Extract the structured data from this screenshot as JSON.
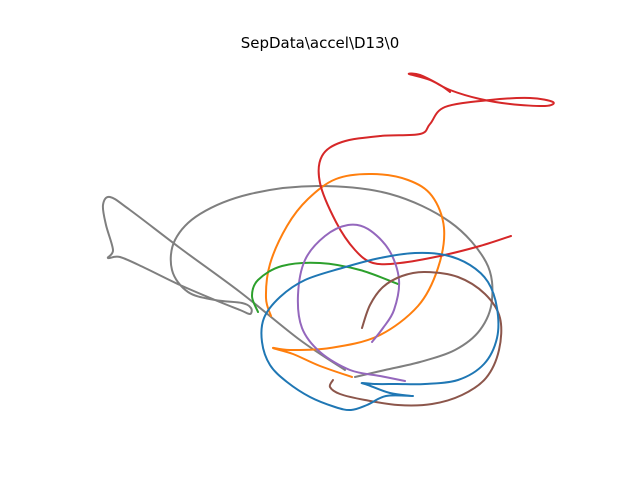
{
  "chart_data": {
    "type": "line",
    "title": "SepData\\accel\\D13\\0",
    "xlabel": "",
    "ylabel": "",
    "axes_visible": false,
    "grid": false,
    "legend": "none",
    "series": [
      {
        "color": "#7f7f7f",
        "points": [
          [
            345,
            370
          ],
          [
            300,
            340
          ],
          [
            240,
            292
          ],
          [
            180,
            248
          ],
          [
            130,
            210
          ],
          [
            110,
            197
          ],
          [
            103,
            205
          ],
          [
            106,
            225
          ],
          [
            113,
            250
          ],
          [
            108,
            258
          ],
          [
            120,
            257
          ],
          [
            145,
            268
          ],
          [
            180,
            285
          ],
          [
            215,
            300
          ],
          [
            240,
            310
          ],
          [
            250,
            314
          ],
          [
            251,
            308
          ],
          [
            242,
            303
          ],
          [
            215,
            300
          ],
          [
            188,
            292
          ],
          [
            172,
            270
          ],
          [
            175,
            240
          ],
          [
            200,
            214
          ],
          [
            250,
            194
          ],
          [
            318,
            186
          ],
          [
            390,
            194
          ],
          [
            450,
            222
          ],
          [
            486,
            262
          ],
          [
            492,
            300
          ],
          [
            480,
            330
          ],
          [
            455,
            350
          ],
          [
            420,
            362
          ],
          [
            385,
            370
          ],
          [
            355,
            377
          ]
        ]
      },
      {
        "color": "#ff7f0e",
        "points": [
          [
            352,
            377
          ],
          [
            320,
            366
          ],
          [
            293,
            354
          ],
          [
            273,
            348
          ],
          [
            290,
            350
          ],
          [
            330,
            348
          ],
          [
            378,
            336
          ],
          [
            418,
            306
          ],
          [
            438,
            268
          ],
          [
            444,
            228
          ],
          [
            432,
            196
          ],
          [
            408,
            180
          ],
          [
            372,
            174
          ],
          [
            336,
            179
          ],
          [
            308,
            199
          ],
          [
            287,
            226
          ],
          [
            270,
            264
          ],
          [
            266,
            298
          ],
          [
            271,
            316
          ]
        ]
      },
      {
        "color": "#2ca02c",
        "points": [
          [
            398,
            284
          ],
          [
            360,
            270
          ],
          [
            320,
            263
          ],
          [
            282,
            266
          ],
          [
            258,
            280
          ],
          [
            252,
            296
          ],
          [
            258,
            312
          ]
        ]
      },
      {
        "color": "#d62728",
        "points": [
          [
            511,
            236
          ],
          [
            480,
            246
          ],
          [
            440,
            256
          ],
          [
            400,
            263
          ],
          [
            373,
            263
          ],
          [
            355,
            250
          ],
          [
            336,
            222
          ],
          [
            320,
            183
          ],
          [
            322,
            156
          ],
          [
            342,
            142
          ],
          [
            380,
            136
          ],
          [
            420,
            134
          ],
          [
            430,
            124
          ],
          [
            445,
            107
          ],
          [
            490,
            100
          ],
          [
            530,
            98
          ],
          [
            553,
            102
          ],
          [
            545,
            106
          ],
          [
            510,
            104
          ],
          [
            480,
            99
          ],
          [
            450,
            90
          ],
          [
            430,
            80
          ],
          [
            409,
            74
          ],
          [
            420,
            75
          ],
          [
            440,
            85
          ],
          [
            450,
            92
          ]
        ]
      },
      {
        "color": "#9467bd",
        "points": [
          [
            405,
            381
          ],
          [
            380,
            376
          ],
          [
            350,
            370
          ],
          [
            320,
            352
          ],
          [
            302,
            328
          ],
          [
            298,
            295
          ],
          [
            305,
            260
          ],
          [
            325,
            236
          ],
          [
            348,
            225
          ],
          [
            368,
            229
          ],
          [
            389,
            250
          ],
          [
            399,
            280
          ],
          [
            394,
            310
          ],
          [
            383,
            328
          ],
          [
            372,
            342
          ]
        ]
      },
      {
        "color": "#8c564b",
        "points": [
          [
            362,
            328
          ],
          [
            370,
            305
          ],
          [
            383,
            287
          ],
          [
            402,
            276
          ],
          [
            425,
            272
          ],
          [
            458,
            277
          ],
          [
            485,
            294
          ],
          [
            500,
            318
          ],
          [
            499,
            350
          ],
          [
            486,
            378
          ],
          [
            462,
            395
          ],
          [
            432,
            404
          ],
          [
            398,
            405
          ],
          [
            365,
            400
          ],
          [
            340,
            394
          ],
          [
            330,
            387
          ],
          [
            333,
            380
          ]
        ]
      },
      {
        "color": "#1f77b4",
        "points": [
          [
            411,
            396
          ],
          [
            390,
            393
          ],
          [
            368,
            385
          ],
          [
            362,
            383
          ],
          [
            376,
            384
          ],
          [
            397,
            384
          ],
          [
            425,
            384
          ],
          [
            458,
            380
          ],
          [
            484,
            364
          ],
          [
            497,
            338
          ],
          [
            497,
            308
          ],
          [
            488,
            282
          ],
          [
            470,
            265
          ],
          [
            445,
            255
          ],
          [
            415,
            253
          ],
          [
            380,
            258
          ],
          [
            342,
            268
          ],
          [
            305,
            280
          ],
          [
            280,
            297
          ],
          [
            264,
            318
          ],
          [
            262,
            342
          ],
          [
            270,
            365
          ],
          [
            287,
            382
          ],
          [
            310,
            397
          ],
          [
            335,
            407
          ],
          [
            351,
            410
          ],
          [
            367,
            405
          ],
          [
            386,
            396
          ],
          [
            413,
            396
          ]
        ]
      }
    ]
  }
}
